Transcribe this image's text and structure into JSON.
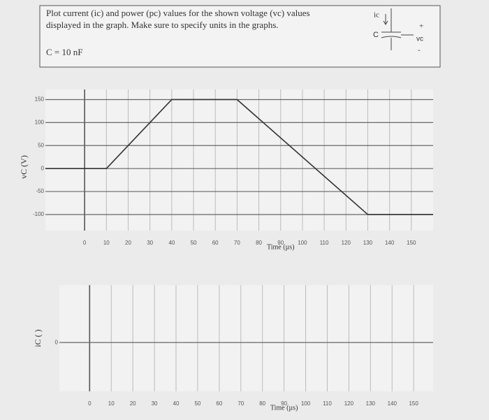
{
  "problem": {
    "lines": [
      "Plot current (ic) and power (pc) values for the shown voltage (vc) values",
      "displayed in the graph. Make sure to specify units in the graphs."
    ],
    "capacitance": "C = 10 nF",
    "circuit": {
      "current": "ic",
      "capacitor": "C",
      "plus": "+",
      "voltage": "vc",
      "minus": "-"
    }
  },
  "chart_data": [
    {
      "type": "line",
      "x_label": "Time (µs)",
      "y_label": "vC (V)",
      "x": [
        -18,
        10,
        40,
        70,
        130,
        160
      ],
      "series": [
        {
          "name": "vC",
          "color": "#333333",
          "values": [
            0,
            0,
            150,
            150,
            -100,
            -100
          ]
        }
      ],
      "xlim": [
        -18,
        160
      ],
      "xticks": [
        0,
        10,
        20,
        30,
        40,
        50,
        60,
        70,
        80,
        90,
        100,
        110,
        120,
        130,
        140,
        150
      ],
      "ylim": [
        -135,
        172
      ],
      "yticks": [
        150,
        100,
        50,
        0,
        -50,
        -100
      ],
      "grid": true
    },
    {
      "type": "line",
      "x_label": "Time (µs)",
      "y_label": "iC ( )",
      "x": [],
      "series": [],
      "xlim": [
        -14,
        159
      ],
      "xticks": [
        0,
        10,
        20,
        30,
        40,
        50,
        60,
        70,
        80,
        90,
        100,
        110,
        120,
        130,
        140,
        150
      ],
      "ylim": [
        -0.85,
        1
      ],
      "yticks": [
        0
      ],
      "grid": true
    }
  ]
}
